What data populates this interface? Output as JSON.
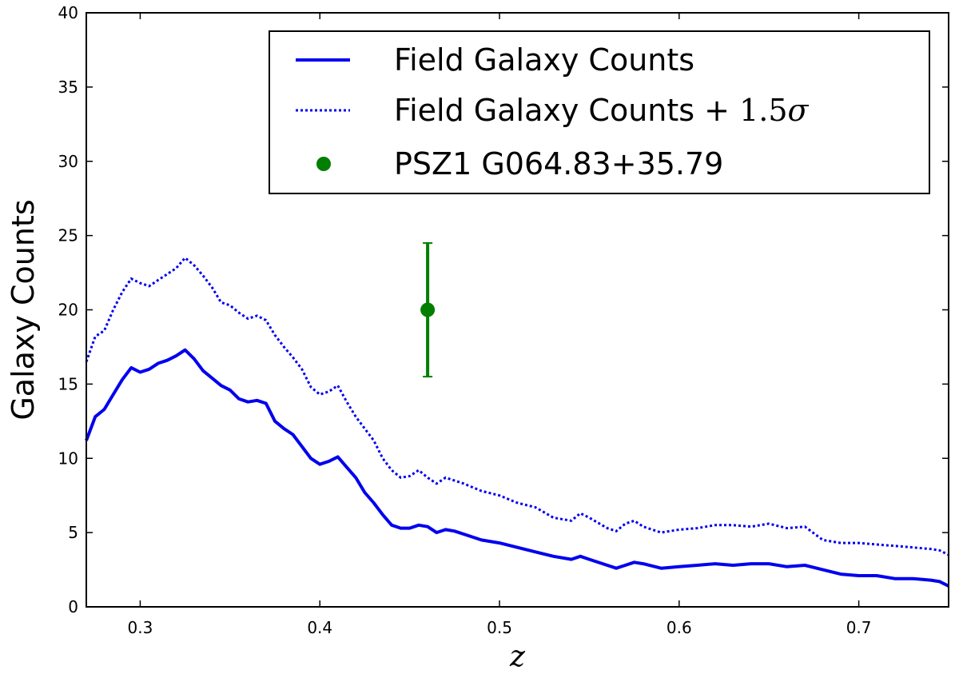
{
  "chart_data": {
    "type": "line",
    "xlabel": "z",
    "ylabel": "Galaxy Counts",
    "xlim": [
      0.27,
      0.75
    ],
    "ylim": [
      0,
      40
    ],
    "xticks": [
      0.3,
      0.4,
      0.5,
      0.6,
      0.7
    ],
    "yticks": [
      0,
      5,
      10,
      15,
      20,
      25,
      30,
      35,
      40
    ],
    "xtick_labels": [
      "0.3",
      "0.4",
      "0.5",
      "0.6",
      "0.7"
    ],
    "ytick_labels": [
      "0",
      "5",
      "10",
      "15",
      "20",
      "25",
      "30",
      "35",
      "40"
    ],
    "grid": false,
    "legend_position": "top-right",
    "series": [
      {
        "name": "Field Galaxy Counts",
        "style": "solid",
        "color": "#0000ee",
        "x": [
          0.27,
          0.275,
          0.28,
          0.285,
          0.29,
          0.295,
          0.3,
          0.305,
          0.31,
          0.315,
          0.32,
          0.325,
          0.33,
          0.335,
          0.34,
          0.345,
          0.35,
          0.355,
          0.36,
          0.365,
          0.37,
          0.375,
          0.38,
          0.385,
          0.39,
          0.395,
          0.4,
          0.405,
          0.41,
          0.415,
          0.42,
          0.425,
          0.43,
          0.435,
          0.44,
          0.445,
          0.45,
          0.455,
          0.46,
          0.465,
          0.47,
          0.475,
          0.48,
          0.49,
          0.5,
          0.51,
          0.52,
          0.53,
          0.54,
          0.545,
          0.55,
          0.56,
          0.565,
          0.57,
          0.575,
          0.58,
          0.59,
          0.6,
          0.61,
          0.62,
          0.63,
          0.64,
          0.65,
          0.66,
          0.67,
          0.68,
          0.69,
          0.7,
          0.71,
          0.72,
          0.73,
          0.74,
          0.745,
          0.75
        ],
        "y": [
          11.2,
          12.8,
          13.3,
          14.3,
          15.3,
          16.1,
          15.8,
          16.0,
          16.4,
          16.6,
          16.9,
          17.3,
          16.7,
          15.9,
          15.4,
          14.9,
          14.6,
          14.0,
          13.8,
          13.9,
          13.7,
          12.5,
          12.0,
          11.6,
          10.8,
          10.0,
          9.6,
          9.8,
          10.1,
          9.4,
          8.7,
          7.7,
          7.0,
          6.2,
          5.5,
          5.3,
          5.3,
          5.5,
          5.4,
          5.0,
          5.2,
          5.1,
          4.9,
          4.5,
          4.3,
          4.0,
          3.7,
          3.4,
          3.2,
          3.4,
          3.2,
          2.8,
          2.6,
          2.8,
          3.0,
          2.9,
          2.6,
          2.7,
          2.8,
          2.9,
          2.8,
          2.9,
          2.9,
          2.7,
          2.8,
          2.5,
          2.2,
          2.1,
          2.1,
          1.9,
          1.9,
          1.8,
          1.7,
          1.4
        ]
      },
      {
        "name": "Field Galaxy Counts + 1.5σ",
        "name_text": "Field Galaxy Counts + ",
        "name_math": "1.5",
        "name_symbol": "σ",
        "style": "dotted",
        "color": "#0000ee",
        "x": [
          0.27,
          0.275,
          0.28,
          0.285,
          0.29,
          0.295,
          0.3,
          0.305,
          0.31,
          0.315,
          0.32,
          0.325,
          0.33,
          0.335,
          0.34,
          0.345,
          0.35,
          0.355,
          0.36,
          0.365,
          0.37,
          0.375,
          0.38,
          0.385,
          0.39,
          0.395,
          0.4,
          0.405,
          0.41,
          0.415,
          0.42,
          0.425,
          0.43,
          0.435,
          0.44,
          0.445,
          0.45,
          0.455,
          0.46,
          0.465,
          0.47,
          0.475,
          0.48,
          0.49,
          0.5,
          0.51,
          0.52,
          0.53,
          0.54,
          0.545,
          0.55,
          0.56,
          0.565,
          0.57,
          0.575,
          0.58,
          0.59,
          0.6,
          0.61,
          0.62,
          0.63,
          0.64,
          0.65,
          0.66,
          0.67,
          0.68,
          0.69,
          0.7,
          0.71,
          0.72,
          0.73,
          0.74,
          0.745,
          0.75
        ],
        "y": [
          16.5,
          18.2,
          18.6,
          20.0,
          21.2,
          22.1,
          21.8,
          21.6,
          22.0,
          22.4,
          22.8,
          23.5,
          23.0,
          22.3,
          21.5,
          20.5,
          20.3,
          19.8,
          19.4,
          19.6,
          19.3,
          18.3,
          17.5,
          16.8,
          16.0,
          14.8,
          14.3,
          14.5,
          14.9,
          13.8,
          12.8,
          12.0,
          11.2,
          10.0,
          9.2,
          8.7,
          8.8,
          9.2,
          8.7,
          8.3,
          8.7,
          8.5,
          8.3,
          7.8,
          7.5,
          7.0,
          6.7,
          6.0,
          5.8,
          6.3,
          6.0,
          5.3,
          5.1,
          5.6,
          5.8,
          5.4,
          5.0,
          5.2,
          5.3,
          5.5,
          5.5,
          5.4,
          5.6,
          5.3,
          5.4,
          4.5,
          4.3,
          4.3,
          4.2,
          4.1,
          4.0,
          3.9,
          3.8,
          3.5
        ]
      },
      {
        "name": "PSZ1 G064.83+35.79",
        "style": "point",
        "color": "#007f00",
        "x": [
          0.46
        ],
        "y": [
          20.0
        ],
        "yerr_low": [
          15.5
        ],
        "yerr_high": [
          24.5
        ]
      }
    ]
  }
}
